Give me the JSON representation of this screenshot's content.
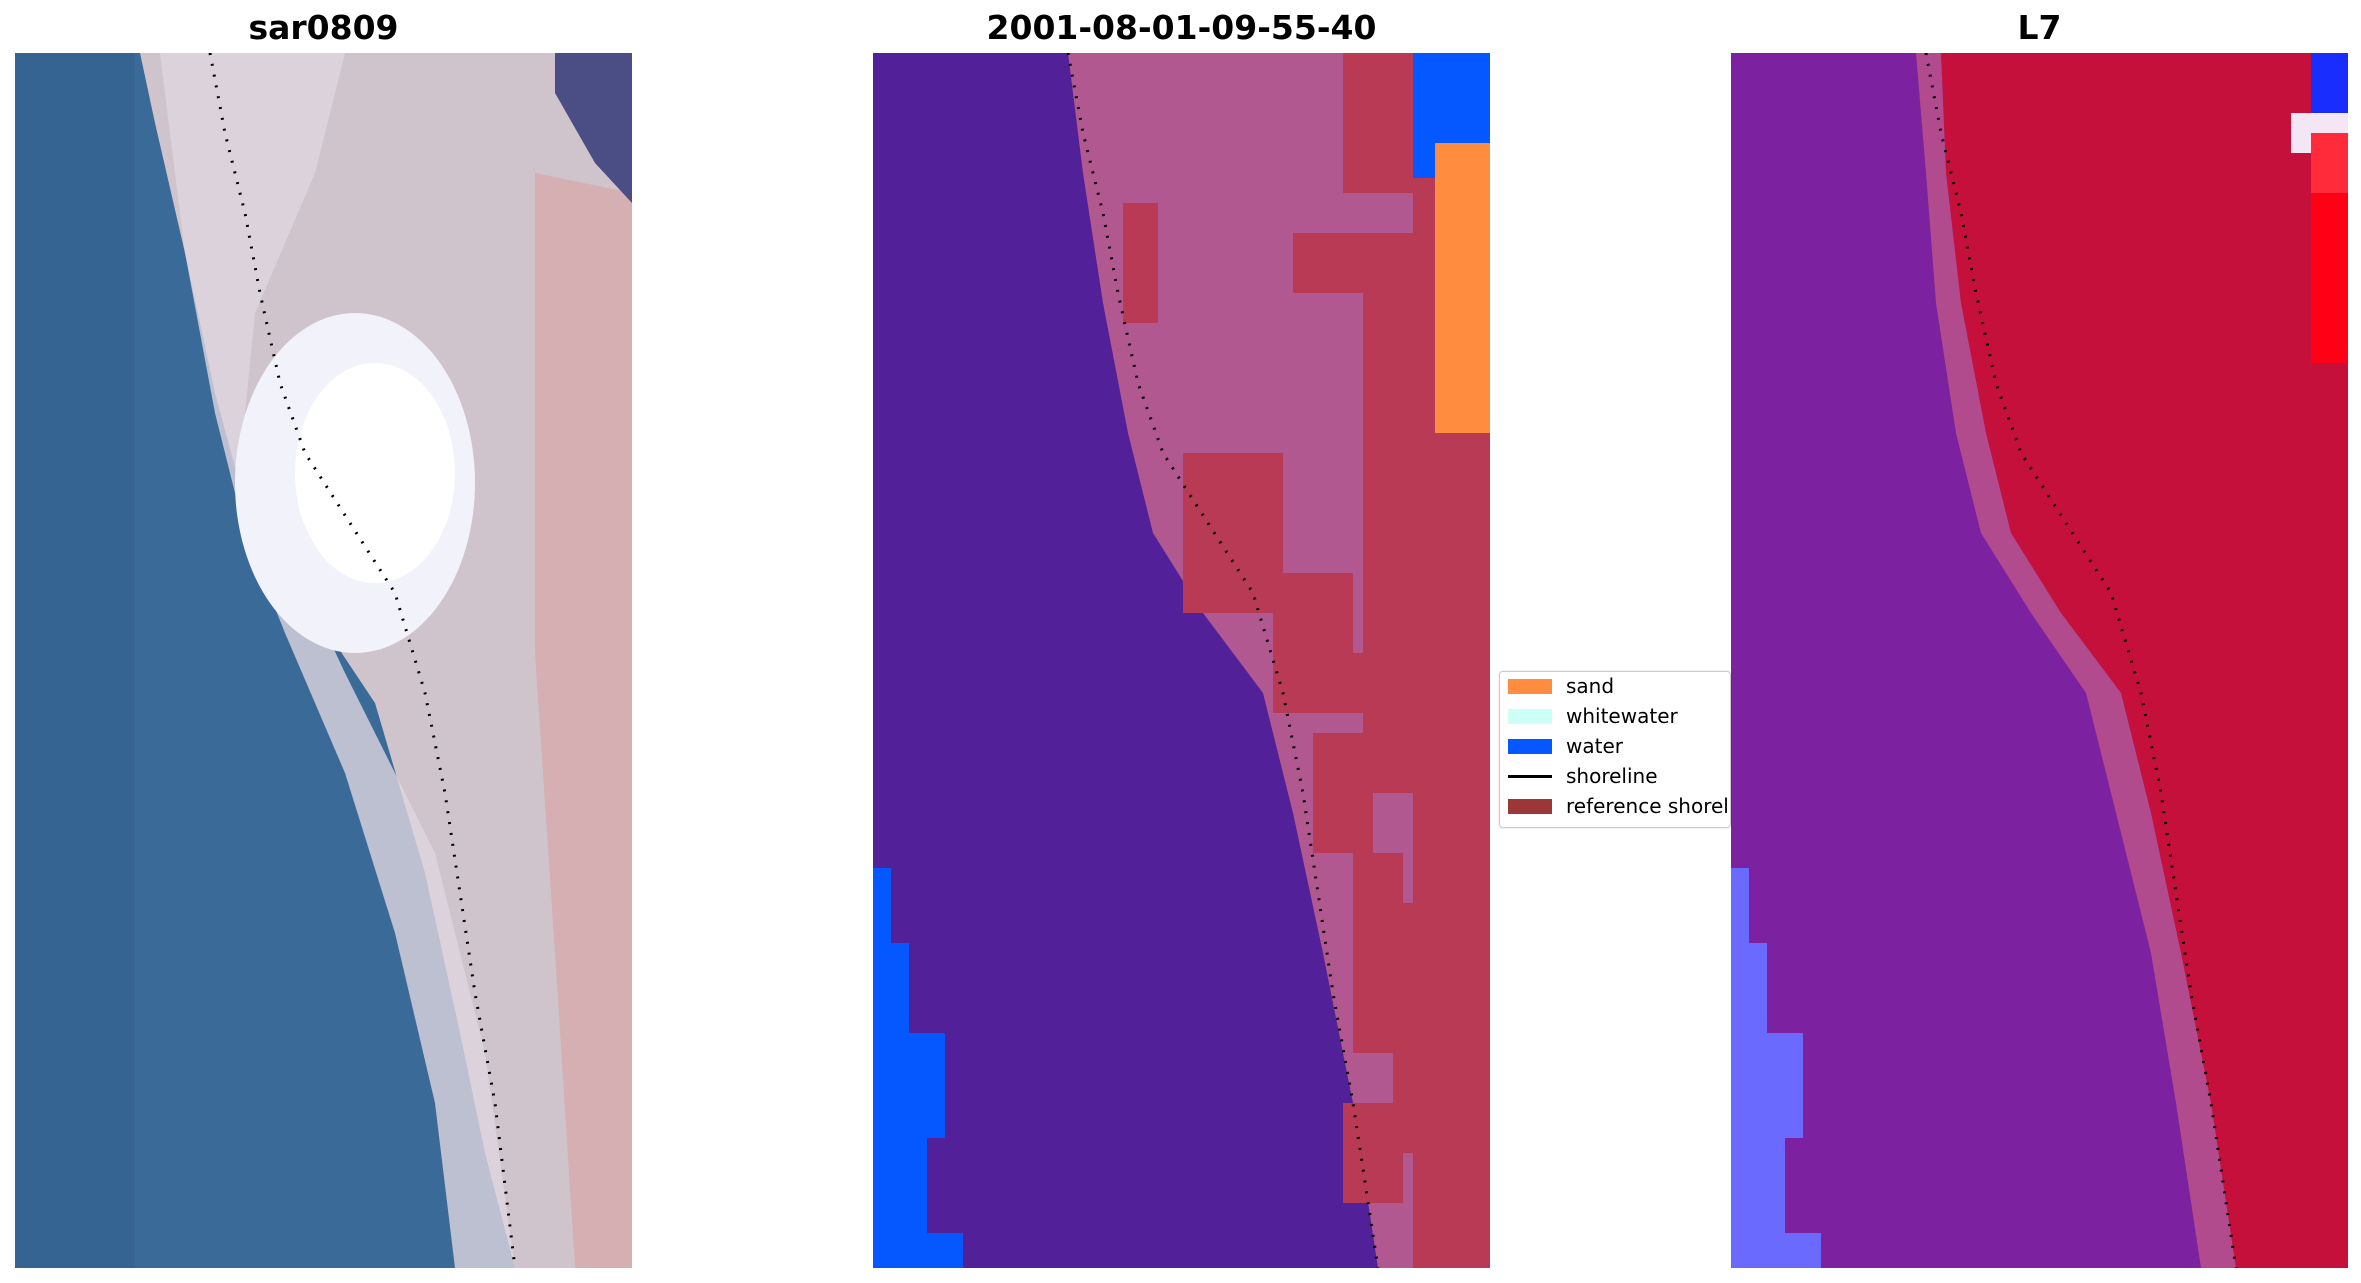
{
  "panels": [
    {
      "title": "sar0809"
    },
    {
      "title": "2001-08-01-09-55-40"
    },
    {
      "title": "L7"
    }
  ],
  "legend": {
    "items": [
      {
        "label": "sand",
        "kind": "patch",
        "color": "#ff8c3f"
      },
      {
        "label": "whitewater",
        "kind": "patch",
        "color": "#ccfff5"
      },
      {
        "label": "water",
        "kind": "patch",
        "color": "#0557ff"
      },
      {
        "label": "shoreline",
        "kind": "line",
        "color": "#000000"
      },
      {
        "label": "reference shoreline",
        "kind": "patch",
        "color": "#9c3737"
      }
    ]
  },
  "colors": {
    "rgb_water": "#3a6a98",
    "rgb_beach": "#d8cdd2",
    "rgb_whitewater": "#f2f2fa",
    "class_background": "#52219a",
    "class_water": "#0557ff",
    "class_sand": "#ff8c3f",
    "class_land_red": "#b83a55",
    "class_land_pink": "#b0588f",
    "l7_purple": "#7c22a0",
    "l7_red": "#c4103a",
    "l7_blue": "#6a6aff"
  }
}
